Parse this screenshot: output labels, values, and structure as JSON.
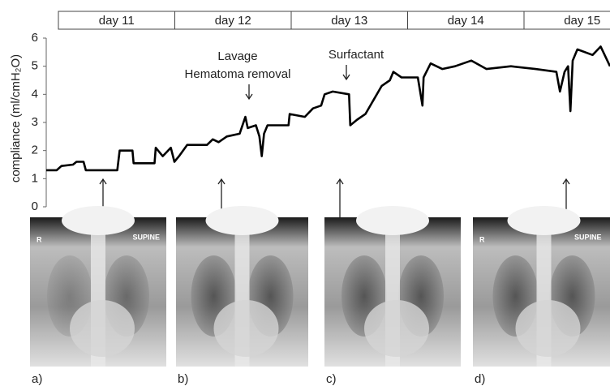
{
  "chart_data": {
    "type": "line",
    "y_label": "compliance (ml/cmH₂O)",
    "day_labels": [
      "day 11",
      "day 12",
      "day 13",
      "day 14",
      "day 15"
    ],
    "xlim": [
      10.9,
      15.74
    ],
    "ylim": [
      0,
      6
    ],
    "yticks": [
      0,
      1,
      2,
      3,
      4,
      5,
      6
    ],
    "series": [
      {
        "color": "#000000",
        "x": [
          10.9,
          10.99,
          11.03,
          11.13,
          11.16,
          11.22,
          11.24,
          11.51,
          11.53,
          11.64,
          11.65,
          11.83,
          11.84,
          11.9,
          11.97,
          12.0,
          12.04,
          12.11,
          12.28,
          12.33,
          12.38,
          12.45,
          12.56,
          12.61,
          12.63,
          12.7,
          12.73,
          12.75,
          12.77,
          12.8,
          12.98,
          12.99,
          13.12,
          13.19,
          13.26,
          13.29,
          13.36,
          13.5,
          13.51,
          13.57,
          13.64,
          13.71,
          13.78,
          13.85,
          13.88,
          13.95,
          14.09,
          14.13,
          14.14,
          14.2,
          14.3,
          14.41,
          14.55,
          14.68,
          14.89,
          15.1,
          15.28,
          15.31,
          15.35,
          15.38,
          15.4,
          15.42,
          15.46,
          15.59,
          15.66,
          15.74
        ],
        "values": [
          1.3,
          1.3,
          1.45,
          1.5,
          1.6,
          1.6,
          1.3,
          1.3,
          2.0,
          2.0,
          1.55,
          1.55,
          2.1,
          1.8,
          2.1,
          1.6,
          1.8,
          2.2,
          2.2,
          2.4,
          2.3,
          2.5,
          2.6,
          3.2,
          2.8,
          2.9,
          2.5,
          1.8,
          2.6,
          2.9,
          2.9,
          3.3,
          3.2,
          3.5,
          3.6,
          4.0,
          4.1,
          4.0,
          2.9,
          3.1,
          3.3,
          3.8,
          4.3,
          4.5,
          4.8,
          4.6,
          4.6,
          3.6,
          4.6,
          5.1,
          4.9,
          5.0,
          5.2,
          4.9,
          5.0,
          4.9,
          4.8,
          4.1,
          4.8,
          5.0,
          3.4,
          5.2,
          5.6,
          5.4,
          5.7,
          5.0
        ]
      }
    ],
    "annotations": [
      {
        "lines": [
          "Lavage",
          "Hematoma removal"
        ]
      },
      {
        "lines": [
          "Surfactant"
        ]
      }
    ],
    "images": [
      {
        "label": "a)",
        "texts": [
          "R",
          "SUPINE"
        ]
      },
      {
        "label": "b)",
        "texts": []
      },
      {
        "label": "c)",
        "texts": []
      },
      {
        "label": "d)",
        "texts": [
          "R",
          "SUPINE"
        ]
      }
    ]
  }
}
